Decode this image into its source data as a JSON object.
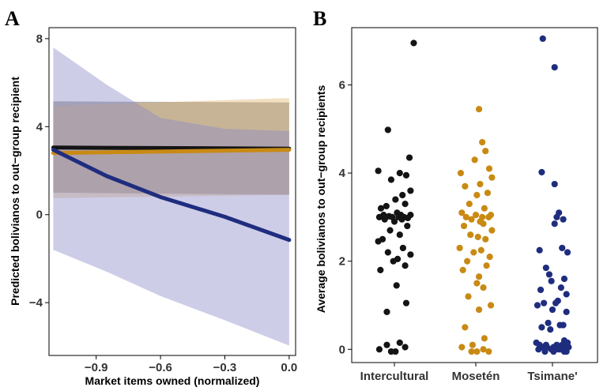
{
  "colors": {
    "intercultural": "#141414",
    "mosetén": "#c98a14",
    "tsimane": "#1f2d7f",
    "intercultural_band": "#4a4a4a",
    "mosetén_band": "#e2b470",
    "tsimane_band": "#8a87c9"
  },
  "chart_data": [
    {
      "panel": "A",
      "type": "line",
      "xlabel": "Market items owned (normalized)",
      "ylabel": "Predicted bolivianos to out−group recipient",
      "xlim": [
        -1.12,
        0.03
      ],
      "ylim": [
        -6.4,
        8.5
      ],
      "xticks": [
        -0.9,
        -0.6,
        -0.3,
        0.0
      ],
      "xtick_labels": [
        "−0.9",
        "−0.6",
        "−0.3",
        "0.0"
      ],
      "yticks": [
        -4,
        0,
        4,
        8
      ],
      "ytick_labels": [
        "−4",
        "0",
        "4",
        "8"
      ],
      "series": [
        {
          "name": "Intercultural",
          "color_key": "intercultural",
          "x": [
            -1.1,
            0.0
          ],
          "y": [
            3.05,
            3.0
          ],
          "lower": [
            1.0,
            0.9
          ],
          "upper": [
            5.15,
            5.1
          ]
        },
        {
          "name": "Mosetén",
          "color_key": "mosetén",
          "x": [
            -1.1,
            0.0
          ],
          "y": [
            2.8,
            2.95
          ],
          "lower": [
            0.75,
            0.9
          ],
          "upper": [
            4.95,
            5.3
          ]
        },
        {
          "name": "Tsimane'",
          "color_key": "tsimane",
          "x": [
            -1.1,
            -0.85,
            -0.6,
            -0.3,
            0.0
          ],
          "y": [
            2.95,
            1.75,
            0.8,
            -0.1,
            -1.15
          ],
          "lower": [
            -1.6,
            -2.6,
            -3.7,
            -4.8,
            -5.95
          ],
          "upper": [
            7.6,
            5.9,
            4.4,
            3.9,
            3.8
          ]
        }
      ]
    },
    {
      "panel": "B",
      "type": "scatter",
      "xlabel": "",
      "ylabel": "Average bolivianos to out−group recipients",
      "ylim": [
        -0.3,
        7.3
      ],
      "yticks": [
        0,
        2,
        4,
        6
      ],
      "ytick_labels": [
        "0",
        "2",
        "4",
        "6"
      ],
      "categories": [
        "Intercultural",
        "Mosetén",
        "Tsimane'"
      ],
      "series": [
        {
          "name": "Intercultural",
          "color_key": "intercultural",
          "jitter": [
            0.36,
            -0.12,
            0.28,
            -0.3,
            0.1,
            0.22,
            -0.06,
            0.3,
            0.15,
            0.02,
            0.2,
            -0.15,
            -0.25,
            0.05,
            0.12,
            -0.2,
            0.3,
            -0.1,
            0.18,
            -0.28,
            0.08,
            -0.04,
            0.25,
            0.14,
            -0.18,
            0.0,
            0.24,
            -0.08,
            0.1,
            -0.22,
            -0.3,
            0.16,
            -0.12,
            0.3,
            0.06,
            -0.02,
            0.2,
            -0.26,
            0.04,
            0.22,
            -0.14,
            0.1,
            -0.14,
            0.2,
            -0.28,
            -0.06,
            0.02
          ],
          "values": [
            6.95,
            4.98,
            4.35,
            4.05,
            4.0,
            3.95,
            3.85,
            3.6,
            3.5,
            3.4,
            3.3,
            3.25,
            3.2,
            3.1,
            3.05,
            3.05,
            3.05,
            3.02,
            3.0,
            3.0,
            3.0,
            3.0,
            2.98,
            2.95,
            2.95,
            2.9,
            2.8,
            2.7,
            2.6,
            2.5,
            2.45,
            2.3,
            2.2,
            2.15,
            2.05,
            2.0,
            1.9,
            1.8,
            1.45,
            1.05,
            0.85,
            0.15,
            0.1,
            0.05,
            0.0,
            -0.05,
            -0.05
          ]
        },
        {
          "name": "Mosetén",
          "color_key": "mosetén",
          "jitter": [
            0.06,
            0.12,
            0.18,
            -0.02,
            0.25,
            -0.28,
            0.3,
            0.08,
            -0.2,
            0.22,
            0.02,
            -0.12,
            0.16,
            -0.26,
            0.28,
            0.0,
            0.12,
            -0.18,
            0.24,
            -0.08,
            0.08,
            0.14,
            -0.22,
            0.3,
            -0.1,
            0.04,
            0.18,
            -0.3,
            0.1,
            -0.04,
            0.26,
            -0.16,
            0.2,
            -0.24,
            0.06,
            0.02,
            0.14,
            -0.14,
            0.28,
            0.06,
            -0.2,
            0.16,
            -0.06,
            -0.26,
            0.14,
            0.24,
            -0.08,
            0.02
          ],
          "values": [
            5.45,
            4.7,
            4.5,
            4.3,
            4.1,
            4.0,
            3.9,
            3.75,
            3.7,
            3.55,
            3.5,
            3.3,
            3.2,
            3.1,
            3.05,
            3.05,
            3.0,
            3.0,
            3.0,
            2.95,
            2.9,
            2.85,
            2.8,
            2.7,
            2.6,
            2.55,
            2.5,
            2.3,
            2.25,
            2.2,
            2.1,
            2.0,
            1.9,
            1.8,
            1.65,
            1.5,
            1.4,
            1.2,
            1.0,
            0.9,
            0.5,
            0.25,
            0.1,
            0.05,
            0.0,
            -0.05,
            -0.05,
            -0.05
          ]
        },
        {
          "name": "Tsimane'",
          "color_key": "tsimane",
          "jitter": [
            -0.18,
            0.04,
            -0.2,
            0.04,
            0.12,
            0.08,
            0.2,
            0.04,
            0.18,
            -0.24,
            0.28,
            -0.12,
            -0.06,
            0.22,
            -0.02,
            0.16,
            -0.22,
            0.26,
            0.1,
            -0.16,
            0.06,
            -0.28,
            0.0,
            0.26,
            -0.08,
            0.2,
            0.14,
            -0.2,
            -0.04,
            0.22,
            0.28,
            -0.3,
            -0.12,
            0.08,
            0.18,
            -0.24,
            0.02,
            0.24,
            -0.1,
            0.3,
            -0.18,
            0.12,
            0.06,
            -0.26,
            0.16,
            -0.02,
            0.22,
            -0.14,
            0.02,
            0.26
          ],
          "values": [
            7.05,
            6.4,
            4.02,
            3.75,
            3.1,
            3.0,
            2.95,
            2.85,
            2.3,
            2.25,
            2.2,
            1.85,
            1.7,
            1.6,
            1.55,
            1.4,
            1.35,
            1.25,
            1.1,
            1.05,
            1.05,
            1.0,
            0.9,
            0.85,
            0.6,
            0.55,
            0.55,
            0.5,
            0.45,
            0.2,
            0.15,
            0.15,
            0.1,
            0.1,
            0.1,
            0.1,
            0.05,
            0.05,
            0.05,
            0.05,
            0.05,
            0.0,
            0.0,
            0.0,
            0.0,
            0.0,
            -0.05,
            -0.05,
            -0.05,
            -0.05
          ]
        }
      ]
    }
  ]
}
